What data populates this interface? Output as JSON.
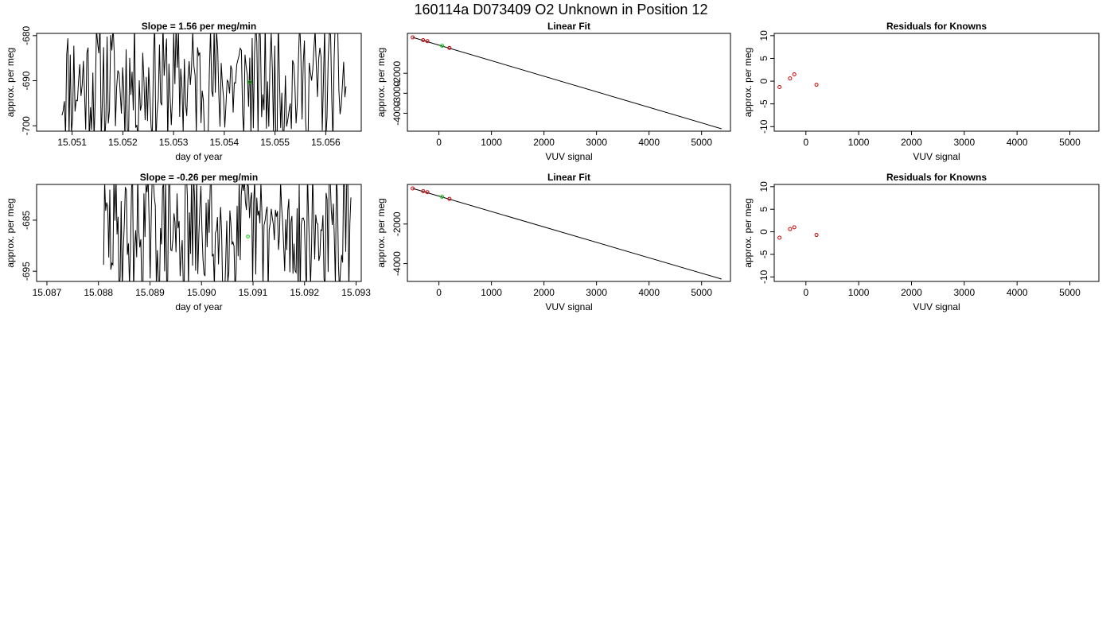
{
  "figure": {
    "title": "160114a     D073409   O2 Unknown in Position  12"
  },
  "chart_data": [
    {
      "type": "line",
      "title": "Slope =  1.56  per meg/min",
      "xlabel": "day of year",
      "ylabel": "approx. per meg",
      "xlim": [
        15.0503,
        15.0567
      ],
      "ylim": [
        -701.2,
        -679.5
      ],
      "xticks": [
        "15.051",
        "15.052",
        "15.053",
        "15.054",
        "15.055",
        "15.056"
      ],
      "yticks": [
        "-700",
        "-690",
        "-680"
      ],
      "line_seed": 11,
      "line_start_x": 15.0508,
      "line_end_x": 15.0564,
      "marker": {
        "x": 15.0545,
        "y": -690.3,
        "color": "#00cc00"
      },
      "colors": {
        "line": "#000000",
        "marker": "#00cc00"
      }
    },
    {
      "type": "scatter",
      "title": "Linear Fit",
      "xlabel": "VUV signal",
      "ylabel": "approx. per meg",
      "xlim": [
        -600,
        5550
      ],
      "ylim": [
        -4900,
        0
      ],
      "xticks": [
        "0",
        "1000",
        "2000",
        "3000",
        "4000",
        "5000"
      ],
      "yticks": [
        "-4000",
        "-3000",
        "-2000"
      ],
      "points": {
        "x": [
          -500,
          -300,
          -220,
          200
        ],
        "y": [
          -200,
          -340,
          -390,
          -730
        ]
      },
      "unknown_point": {
        "x": 60,
        "y": -620
      },
      "fit_line": {
        "x": [
          -500,
          5380
        ],
        "y": [
          -200,
          -4780
        ]
      },
      "colors": {
        "points": "#cc0000",
        "unknown": "#00cc00",
        "line": "#000000"
      }
    },
    {
      "type": "scatter",
      "title": "Residuals for Knowns",
      "xlabel": "VUV signal",
      "ylabel": "approx. per meg",
      "xlim": [
        -600,
        5550
      ],
      "ylim": [
        -11,
        10.5
      ],
      "xticks": [
        "0",
        "1000",
        "2000",
        "3000",
        "4000",
        "5000"
      ],
      "yticks": [
        "-10",
        "-5",
        "0",
        "5",
        "10"
      ],
      "points": {
        "x": [
          -500,
          -300,
          -220,
          200
        ],
        "y": [
          -1.3,
          0.6,
          1.5,
          -0.8
        ]
      },
      "colors": {
        "points": "#cc0000"
      }
    },
    {
      "type": "line",
      "title": "Slope =  -0.26  per meg/min",
      "xlabel": "day of year",
      "ylabel": "approx. per meg",
      "xlim": [
        15.0868,
        15.0931
      ],
      "ylim": [
        -697,
        -678
      ],
      "xticks": [
        "15.087",
        "15.088",
        "15.089",
        "15.090",
        "15.091",
        "15.092",
        "15.093"
      ],
      "yticks": [
        "-695",
        "-685"
      ],
      "line_seed": 29,
      "line_start_x": 15.0881,
      "line_end_x": 15.0929,
      "marker": {
        "x": 15.0909,
        "y": -688.2,
        "color": "#00cc00"
      },
      "colors": {
        "line": "#000000",
        "marker": "#00cc00"
      }
    },
    {
      "type": "scatter",
      "title": "Linear Fit",
      "xlabel": "VUV signal",
      "ylabel": "approx. per meg",
      "xlim": [
        -600,
        5550
      ],
      "ylim": [
        -4900,
        0
      ],
      "xticks": [
        "0",
        "1000",
        "2000",
        "3000",
        "4000",
        "5000"
      ],
      "yticks": [
        "-4000",
        "-2000"
      ],
      "points": {
        "x": [
          -500,
          -300,
          -220,
          200
        ],
        "y": [
          -200,
          -340,
          -390,
          -730
        ]
      },
      "unknown_point": {
        "x": 60,
        "y": -620
      },
      "fit_line": {
        "x": [
          -500,
          5380
        ],
        "y": [
          -200,
          -4780
        ]
      },
      "colors": {
        "points": "#cc0000",
        "unknown": "#00cc00",
        "line": "#000000"
      }
    },
    {
      "type": "scatter",
      "title": "Residuals for Knowns",
      "xlabel": "VUV signal",
      "ylabel": "approx. per meg",
      "xlim": [
        -600,
        5550
      ],
      "ylim": [
        -11,
        10.5
      ],
      "xticks": [
        "0",
        "1000",
        "2000",
        "3000",
        "4000",
        "5000"
      ],
      "yticks": [
        "-10",
        "-5",
        "0",
        "5",
        "10"
      ],
      "points": {
        "x": [
          -500,
          -300,
          -220,
          200
        ],
        "y": [
          -1.3,
          0.6,
          1.0,
          -0.7
        ]
      },
      "colors": {
        "points": "#cc0000"
      }
    }
  ]
}
